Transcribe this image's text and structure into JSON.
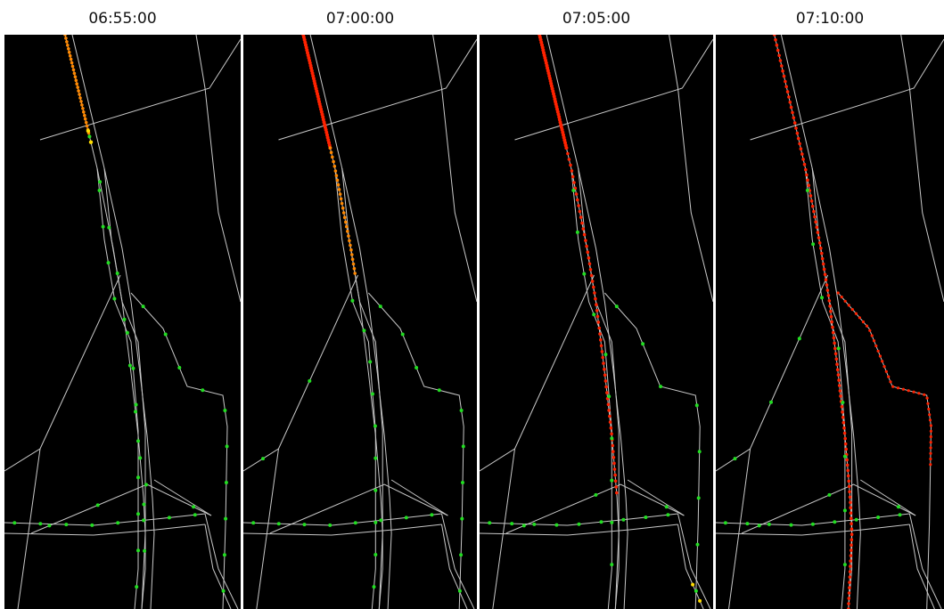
{
  "panels": [
    {
      "time": "06:55:00"
    },
    {
      "time": "07:00:00"
    },
    {
      "time": "07:05:00"
    },
    {
      "time": "07:10:00"
    }
  ],
  "colors": {
    "background": "#000000",
    "road": "#c8c8c8",
    "free_flow_vehicle": "#22dd22",
    "slow_vehicle": "#ff8800",
    "jammed_vehicle": "#ff2200",
    "warning_vehicle": "#ffdd00"
  }
}
